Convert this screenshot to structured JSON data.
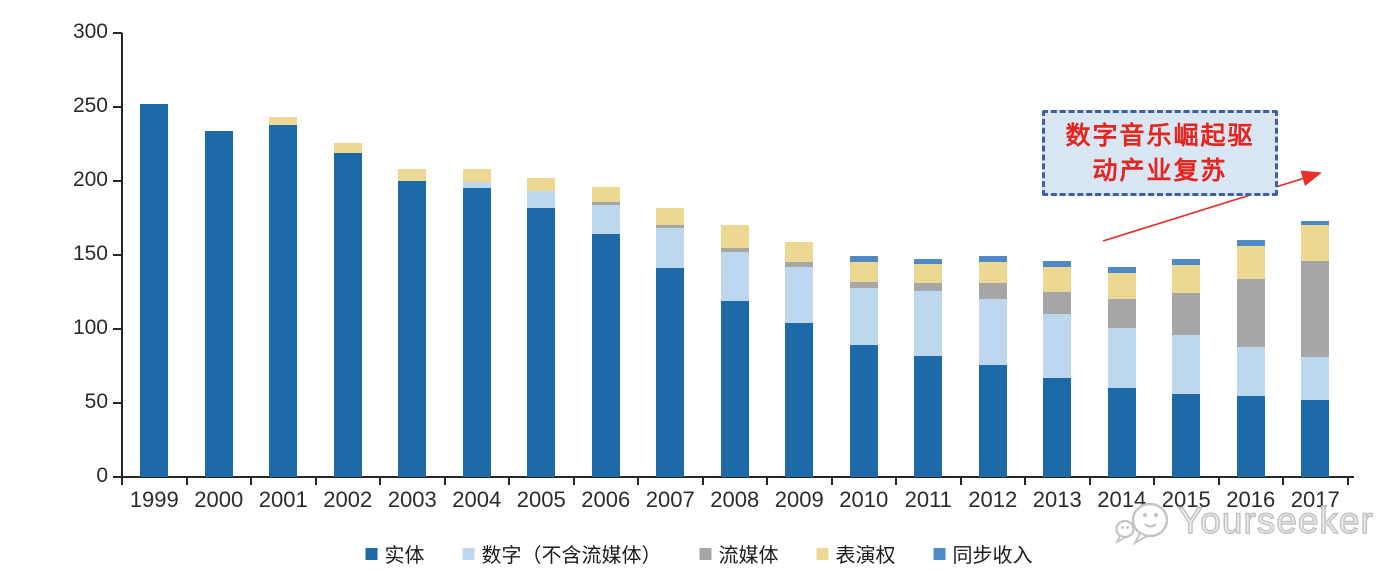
{
  "page": {
    "background": "#ffffff"
  },
  "annotation": {
    "line1": "数字音乐崛起驱",
    "line2": "动产业复苏",
    "text_color": "#e52620",
    "box_fill": "#d9e7f5",
    "border_color": "#3d5ea8",
    "arrow_color": "#e8312a"
  },
  "watermark": {
    "text": "Yourseeker",
    "icon": "chat-bubbles-icon",
    "color": "#c2c2c2"
  },
  "axis": {
    "color": "#262626",
    "label_color": "#2b2b2b"
  },
  "chart_data": {
    "type": "bar",
    "stacked": true,
    "grid": false,
    "legend_position": "bottom",
    "ylim": [
      0,
      300
    ],
    "y_ticks": [
      0,
      50,
      100,
      150,
      200,
      250,
      300
    ],
    "categories": [
      "1999",
      "2000",
      "2001",
      "2002",
      "2003",
      "2004",
      "2005",
      "2006",
      "2007",
      "2008",
      "2009",
      "2010",
      "2011",
      "2012",
      "2013",
      "2014",
      "2015",
      "2016",
      "2017"
    ],
    "series": [
      {
        "name": "实体",
        "key": "physical",
        "color": "#1e6aa8",
        "values": [
          252,
          234,
          238,
          219,
          200,
          195,
          182,
          164,
          141,
          119,
          104,
          89,
          82,
          76,
          67,
          60,
          56,
          55,
          52
        ]
      },
      {
        "name": "数字（不含流媒体）",
        "key": "digital-ex-streaming",
        "color": "#bdd7ee",
        "values": [
          0,
          0,
          0,
          0,
          0,
          4,
          11,
          20,
          27,
          33,
          38,
          39,
          44,
          44,
          43,
          41,
          40,
          33,
          29
        ]
      },
      {
        "name": "流媒体",
        "key": "streaming",
        "color": "#a6a6a6",
        "values": [
          0,
          0,
          0,
          0,
          0,
          0,
          0,
          2,
          2,
          3,
          3,
          4,
          5,
          11,
          15,
          19,
          28,
          46,
          65
        ]
      },
      {
        "name": "表演权",
        "key": "performance-rights",
        "color": "#ecd892",
        "values": [
          0,
          0,
          5,
          7,
          8,
          9,
          9,
          10,
          12,
          15,
          14,
          13,
          13,
          14,
          17,
          18,
          19,
          22,
          24
        ]
      },
      {
        "name": "同步收入",
        "key": "sync-revenue",
        "color": "#4f89c8",
        "values": [
          0,
          0,
          0,
          0,
          0,
          0,
          0,
          0,
          0,
          0,
          0,
          4,
          3,
          4,
          4,
          4,
          4,
          4,
          3
        ]
      }
    ]
  }
}
